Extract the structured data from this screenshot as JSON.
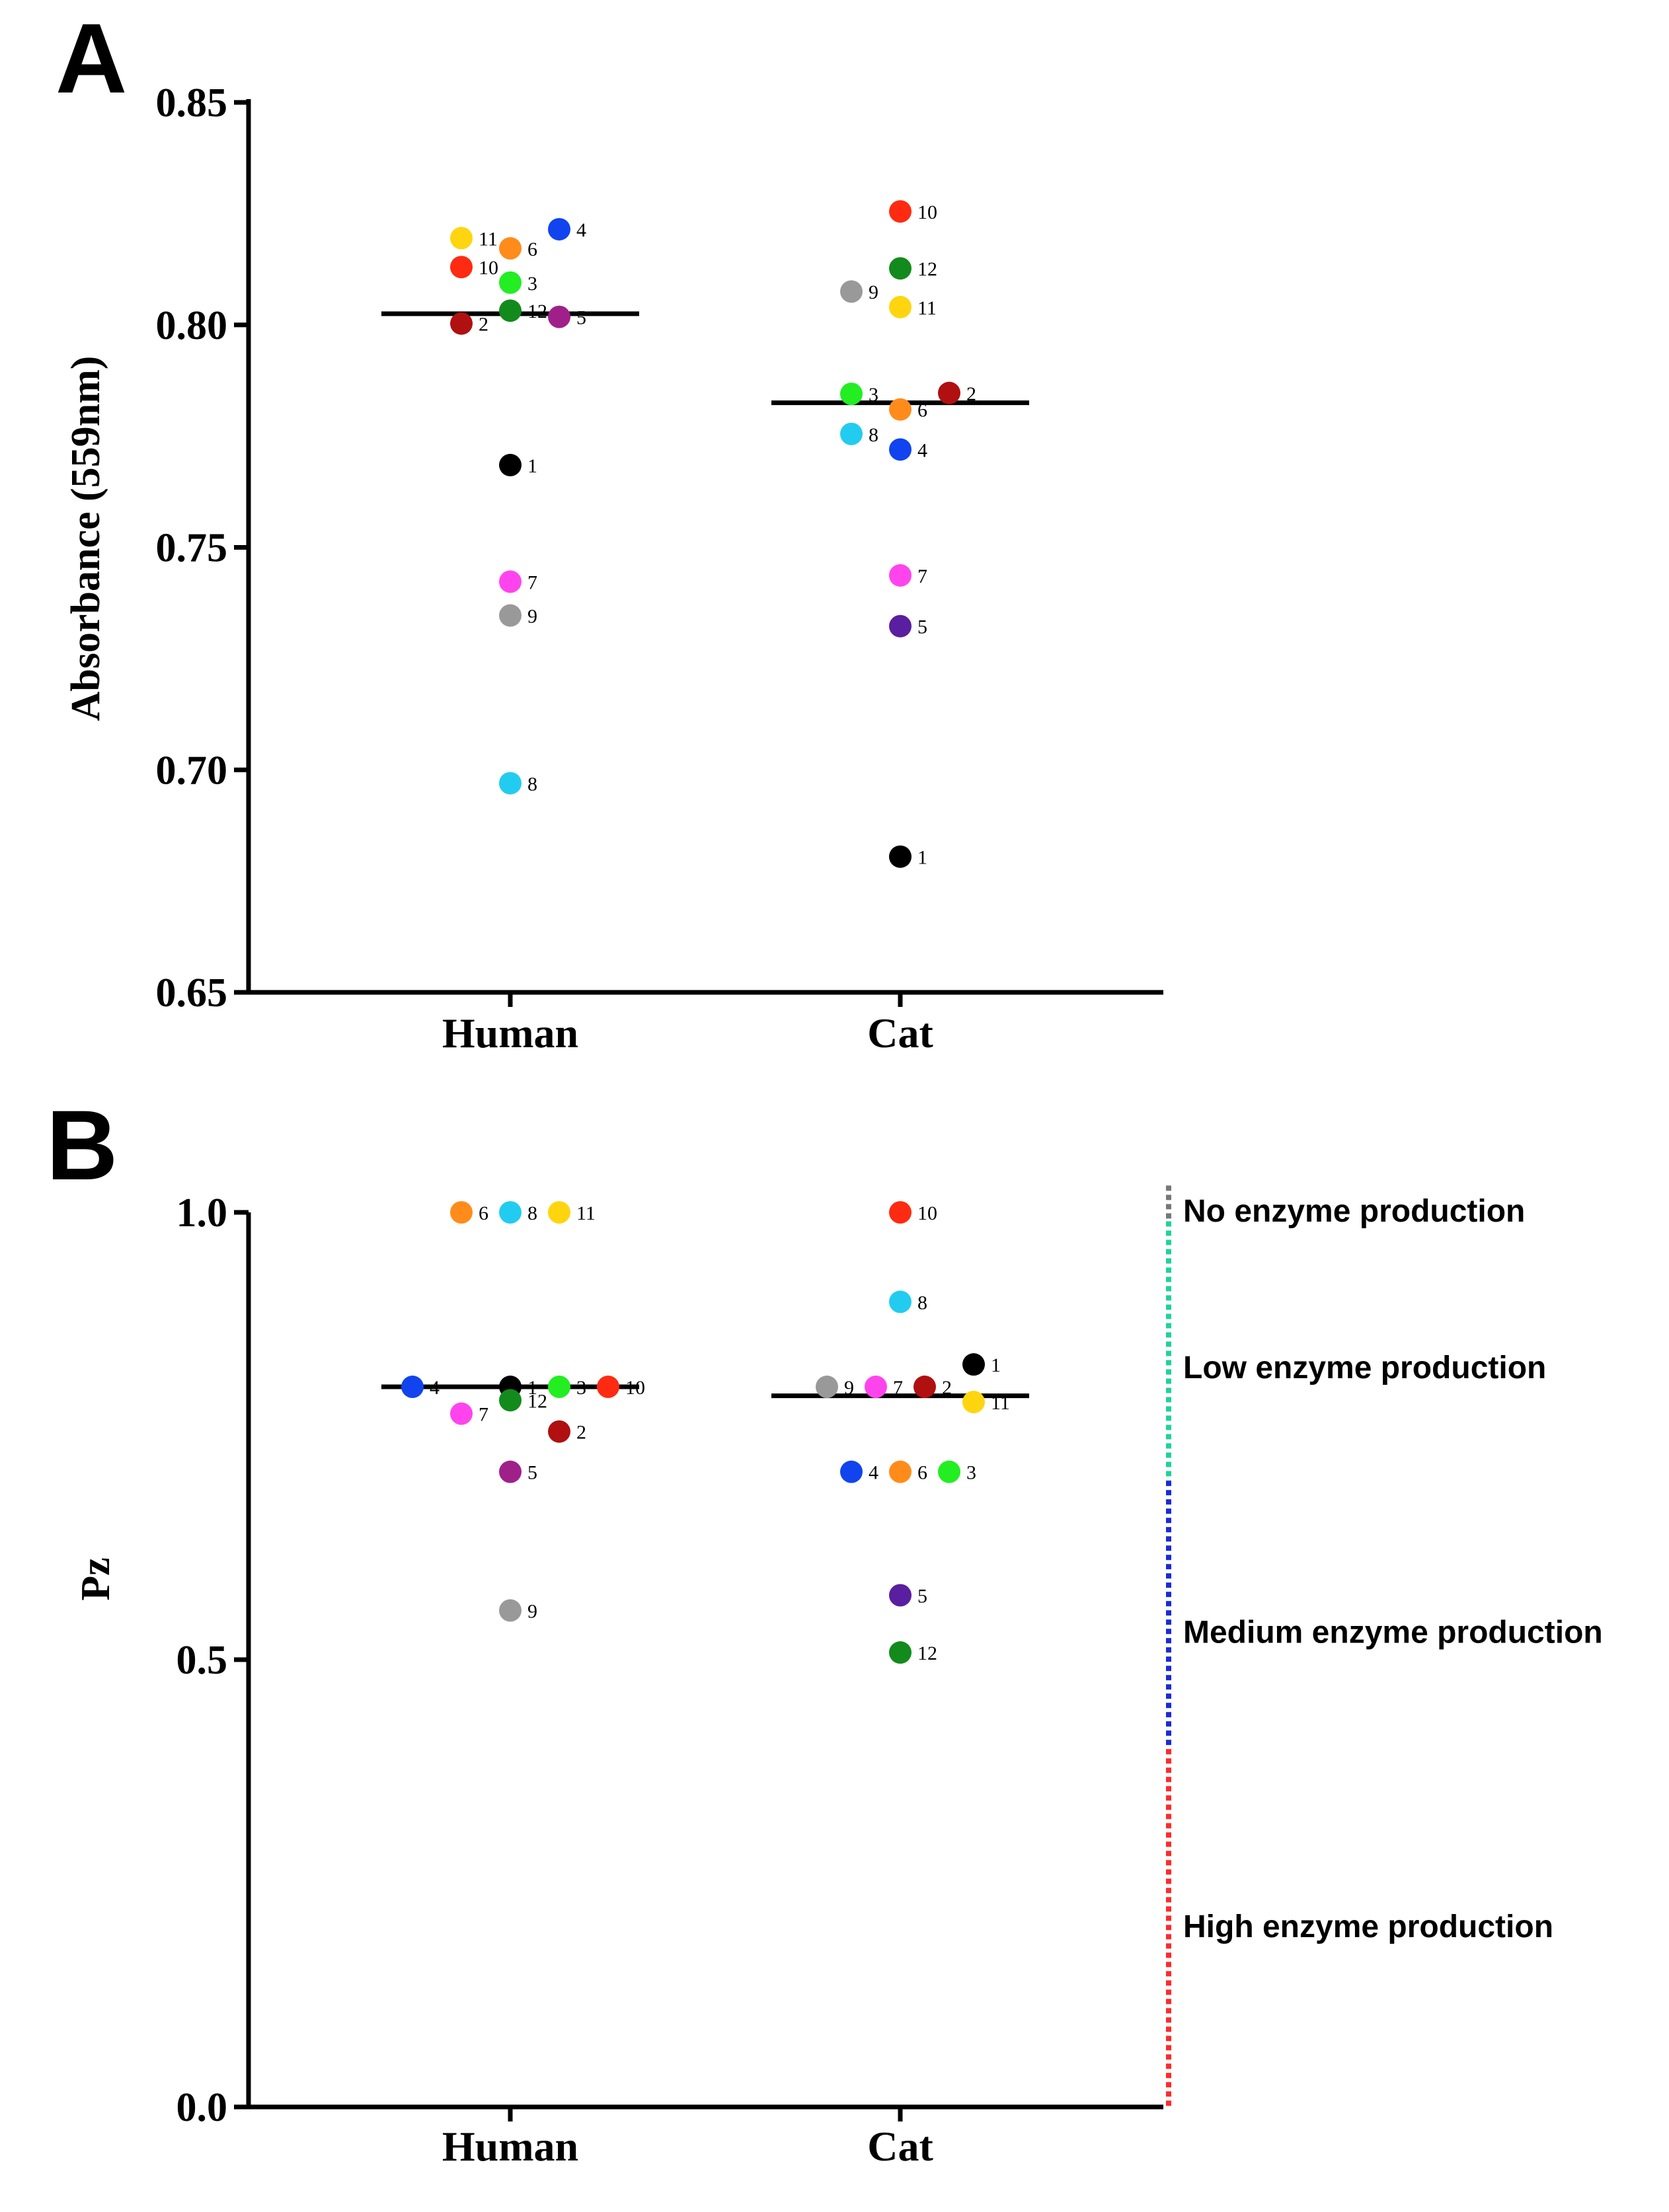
{
  "chart_data": [
    {
      "type": "scatter",
      "panel": "A",
      "ylabel": "Absorbance (559nm)",
      "xlabel": "",
      "ylim": [
        0.65,
        0.85
      ],
      "yticks": [
        "0.65",
        "0.70",
        "0.75",
        "0.80",
        "0.85"
      ],
      "yticks_values": [
        0.65,
        0.7,
        0.75,
        0.8,
        0.85
      ],
      "categories": [
        "Human",
        "Cat"
      ],
      "means": [
        0.8025,
        0.7825
      ],
      "groups": [
        {
          "name": "Human",
          "points": [
            {
              "label": "1",
              "value": 0.7685,
              "offset": 0,
              "color": "#000000"
            },
            {
              "label": "2",
              "value": 0.8003,
              "offset": -1,
              "color": "#b01010"
            },
            {
              "label": "3",
              "value": 0.8095,
              "offset": 0,
              "color": "#22ee22"
            },
            {
              "label": "4",
              "value": 0.8215,
              "offset": 1,
              "color": "#1144ee"
            },
            {
              "label": "5",
              "value": 0.8018,
              "offset": 1,
              "color": "#a0208a"
            },
            {
              "label": "6",
              "value": 0.8172,
              "offset": 0,
              "color": "#ff8c1a"
            },
            {
              "label": "7",
              "value": 0.7423,
              "offset": 0,
              "color": "#ff44ee"
            },
            {
              "label": "8",
              "value": 0.697,
              "offset": 0,
              "color": "#22ccf0"
            },
            {
              "label": "9",
              "value": 0.7347,
              "offset": 0,
              "color": "#999999"
            },
            {
              "label": "10",
              "value": 0.813,
              "offset": -1,
              "color": "#ff2a12"
            },
            {
              "label": "11",
              "value": 0.8195,
              "offset": -1,
              "color": "#ffd510"
            },
            {
              "label": "12",
              "value": 0.8032,
              "offset": 0,
              "color": "#138a1c"
            }
          ]
        },
        {
          "name": "Cat",
          "points": [
            {
              "label": "1",
              "value": 0.6805,
              "offset": 0,
              "color": "#000000"
            },
            {
              "label": "2",
              "value": 0.7847,
              "offset": 1,
              "color": "#b01010"
            },
            {
              "label": "3",
              "value": 0.7845,
              "offset": -1,
              "color": "#22ee22"
            },
            {
              "label": "4",
              "value": 0.772,
              "offset": 0,
              "color": "#1144ee"
            },
            {
              "label": "5",
              "value": 0.7323,
              "offset": 0,
              "color": "#5a1ea0"
            },
            {
              "label": "6",
              "value": 0.781,
              "offset": 0,
              "color": "#ff8c1a"
            },
            {
              "label": "7",
              "value": 0.7437,
              "offset": 0,
              "color": "#ff44ee"
            },
            {
              "label": "8",
              "value": 0.7755,
              "offset": -1,
              "color": "#22ccf0"
            },
            {
              "label": "9",
              "value": 0.8075,
              "offset": -1,
              "color": "#999999"
            },
            {
              "label": "10",
              "value": 0.8255,
              "offset": 0,
              "color": "#ff2a12"
            },
            {
              "label": "11",
              "value": 0.804,
              "offset": 0,
              "color": "#ffd510"
            },
            {
              "label": "12",
              "value": 0.8127,
              "offset": 0,
              "color": "#138a1c"
            }
          ]
        }
      ]
    },
    {
      "type": "scatter",
      "panel": "B",
      "ylabel": "Pz",
      "xlabel": "",
      "ylim": [
        0.0,
        1.0
      ],
      "yticks": [
        "0.0",
        "0.5",
        "1.0"
      ],
      "yticks_values": [
        0.0,
        0.5,
        1.0
      ],
      "categories": [
        "Human",
        "Cat"
      ],
      "means": [
        0.805,
        0.795
      ],
      "groups": [
        {
          "name": "Human",
          "points": [
            {
              "label": "1",
              "value": 0.805,
              "offset": 0,
              "color": "#000000"
            },
            {
              "label": "2",
              "value": 0.755,
              "offset": 1,
              "color": "#b01010"
            },
            {
              "label": "3",
              "value": 0.805,
              "offset": 1,
              "color": "#22ee22"
            },
            {
              "label": "4",
              "value": 0.805,
              "offset": -2,
              "color": "#1144ee"
            },
            {
              "label": "5",
              "value": 0.71,
              "offset": 0,
              "color": "#a0208a"
            },
            {
              "label": "6",
              "value": 1.0,
              "offset": -1,
              "color": "#ff8c1a"
            },
            {
              "label": "7",
              "value": 0.775,
              "offset": -1,
              "color": "#ff44ee"
            },
            {
              "label": "8",
              "value": 1.0,
              "offset": 0,
              "color": "#22ccf0"
            },
            {
              "label": "9",
              "value": 0.555,
              "offset": 0,
              "color": "#999999"
            },
            {
              "label": "10",
              "value": 0.805,
              "offset": 2,
              "color": "#ff2a12"
            },
            {
              "label": "11",
              "value": 1.0,
              "offset": 1,
              "color": "#ffd510"
            },
            {
              "label": "12",
              "value": 0.79,
              "offset": 0,
              "color": "#138a1c"
            }
          ]
        },
        {
          "name": "Cat",
          "points": [
            {
              "label": "1",
              "value": 0.83,
              "offset": 1.5,
              "color": "#000000"
            },
            {
              "label": "2",
              "value": 0.805,
              "offset": 0.5,
              "color": "#b01010"
            },
            {
              "label": "3",
              "value": 0.71,
              "offset": 1,
              "color": "#22ee22"
            },
            {
              "label": "4",
              "value": 0.71,
              "offset": -1,
              "color": "#1144ee"
            },
            {
              "label": "5",
              "value": 0.572,
              "offset": 0,
              "color": "#5a1ea0"
            },
            {
              "label": "6",
              "value": 0.71,
              "offset": 0,
              "color": "#ff8c1a"
            },
            {
              "label": "7",
              "value": 0.805,
              "offset": -0.5,
              "color": "#ff44ee"
            },
            {
              "label": "8",
              "value": 0.9,
              "offset": 0,
              "color": "#22ccf0"
            },
            {
              "label": "9",
              "value": 0.805,
              "offset": -1.5,
              "color": "#999999"
            },
            {
              "label": "10",
              "value": 1.0,
              "offset": 0,
              "color": "#ff2a12"
            },
            {
              "label": "11",
              "value": 0.788,
              "offset": 1.5,
              "color": "#ffd510"
            },
            {
              "label": "12",
              "value": 0.508,
              "offset": 0,
              "color": "#138a1c"
            }
          ]
        }
      ],
      "annotations": [
        {
          "text": "No enzyme production",
          "value": 1.0,
          "range": [
            0.99,
            1.03
          ],
          "color": "#777777"
        },
        {
          "text": "Low enzyme production",
          "value": 0.825,
          "range": [
            0.7,
            0.99
          ],
          "color": "#1fd39a"
        },
        {
          "text": "Medium enzyme production",
          "value": 0.529,
          "range": [
            0.4,
            0.7
          ],
          "color": "#1a2ad6"
        },
        {
          "text": "High enzyme production",
          "value": 0.2,
          "range": [
            0.0,
            0.4
          ],
          "color": "#ff2a2a"
        }
      ]
    }
  ]
}
